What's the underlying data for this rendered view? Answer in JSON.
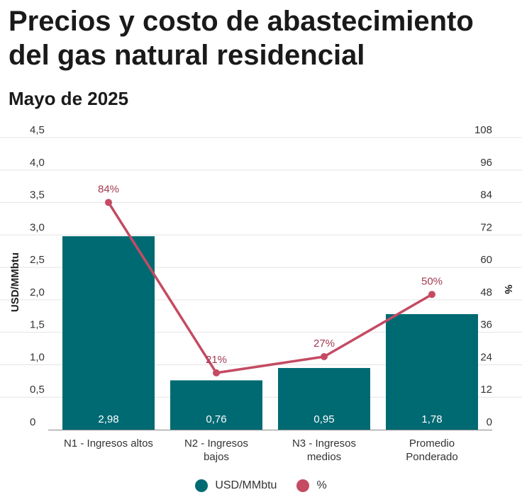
{
  "title": "Precios y costo de abastecimiento del gas natural residencial",
  "subtitle": "Mayo de 2025",
  "colors": {
    "bars": "#006a73",
    "line": "#c44b62",
    "line_label": "#a23b52",
    "grid": "#e4e4e4"
  },
  "chart_data": {
    "type": "bar",
    "categories": [
      "N1 - Ingresos altos",
      "N2 - Ingresos bajos",
      "N3 - Ingresos medios",
      "Promedio Ponderado"
    ],
    "category_lines": [
      [
        "N1 - Ingresos altos"
      ],
      [
        "N2 - Ingresos",
        "bajos"
      ],
      [
        "N3 - Ingresos",
        "medios"
      ],
      [
        "Promedio",
        "Ponderado"
      ]
    ],
    "series": [
      {
        "name": "USD/MMbtu",
        "type": "bar",
        "axis": "left",
        "values": [
          2.98,
          0.76,
          0.95,
          1.78
        ],
        "labels": [
          "2,98",
          "0,76",
          "0,95",
          "1,78"
        ]
      },
      {
        "name": "%",
        "type": "line",
        "axis": "right",
        "values": [
          84,
          21,
          27,
          50
        ],
        "labels": [
          "84%",
          "21%",
          "27%",
          "50%"
        ]
      }
    ],
    "y_left": {
      "label": "USD/MMbtu",
      "range": [
        0,
        4.5
      ],
      "ticks": [
        0,
        0.5,
        1,
        1.5,
        2,
        2.5,
        3,
        3.5,
        4,
        4.5
      ],
      "tick_labels": [
        "0",
        "0,5",
        "1,0",
        "1,5",
        "2,0",
        "2,5",
        "3,0",
        "3,5",
        "4,0",
        "4,5"
      ]
    },
    "y_right": {
      "label": "%",
      "range": [
        0,
        108
      ],
      "ticks": [
        0,
        12,
        24,
        36,
        48,
        60,
        72,
        84,
        96,
        108
      ],
      "tick_labels": [
        "0",
        "12",
        "24",
        "36",
        "48",
        "60",
        "72",
        "84",
        "96",
        "108"
      ]
    },
    "grid": true,
    "legend": "bottom-center"
  }
}
